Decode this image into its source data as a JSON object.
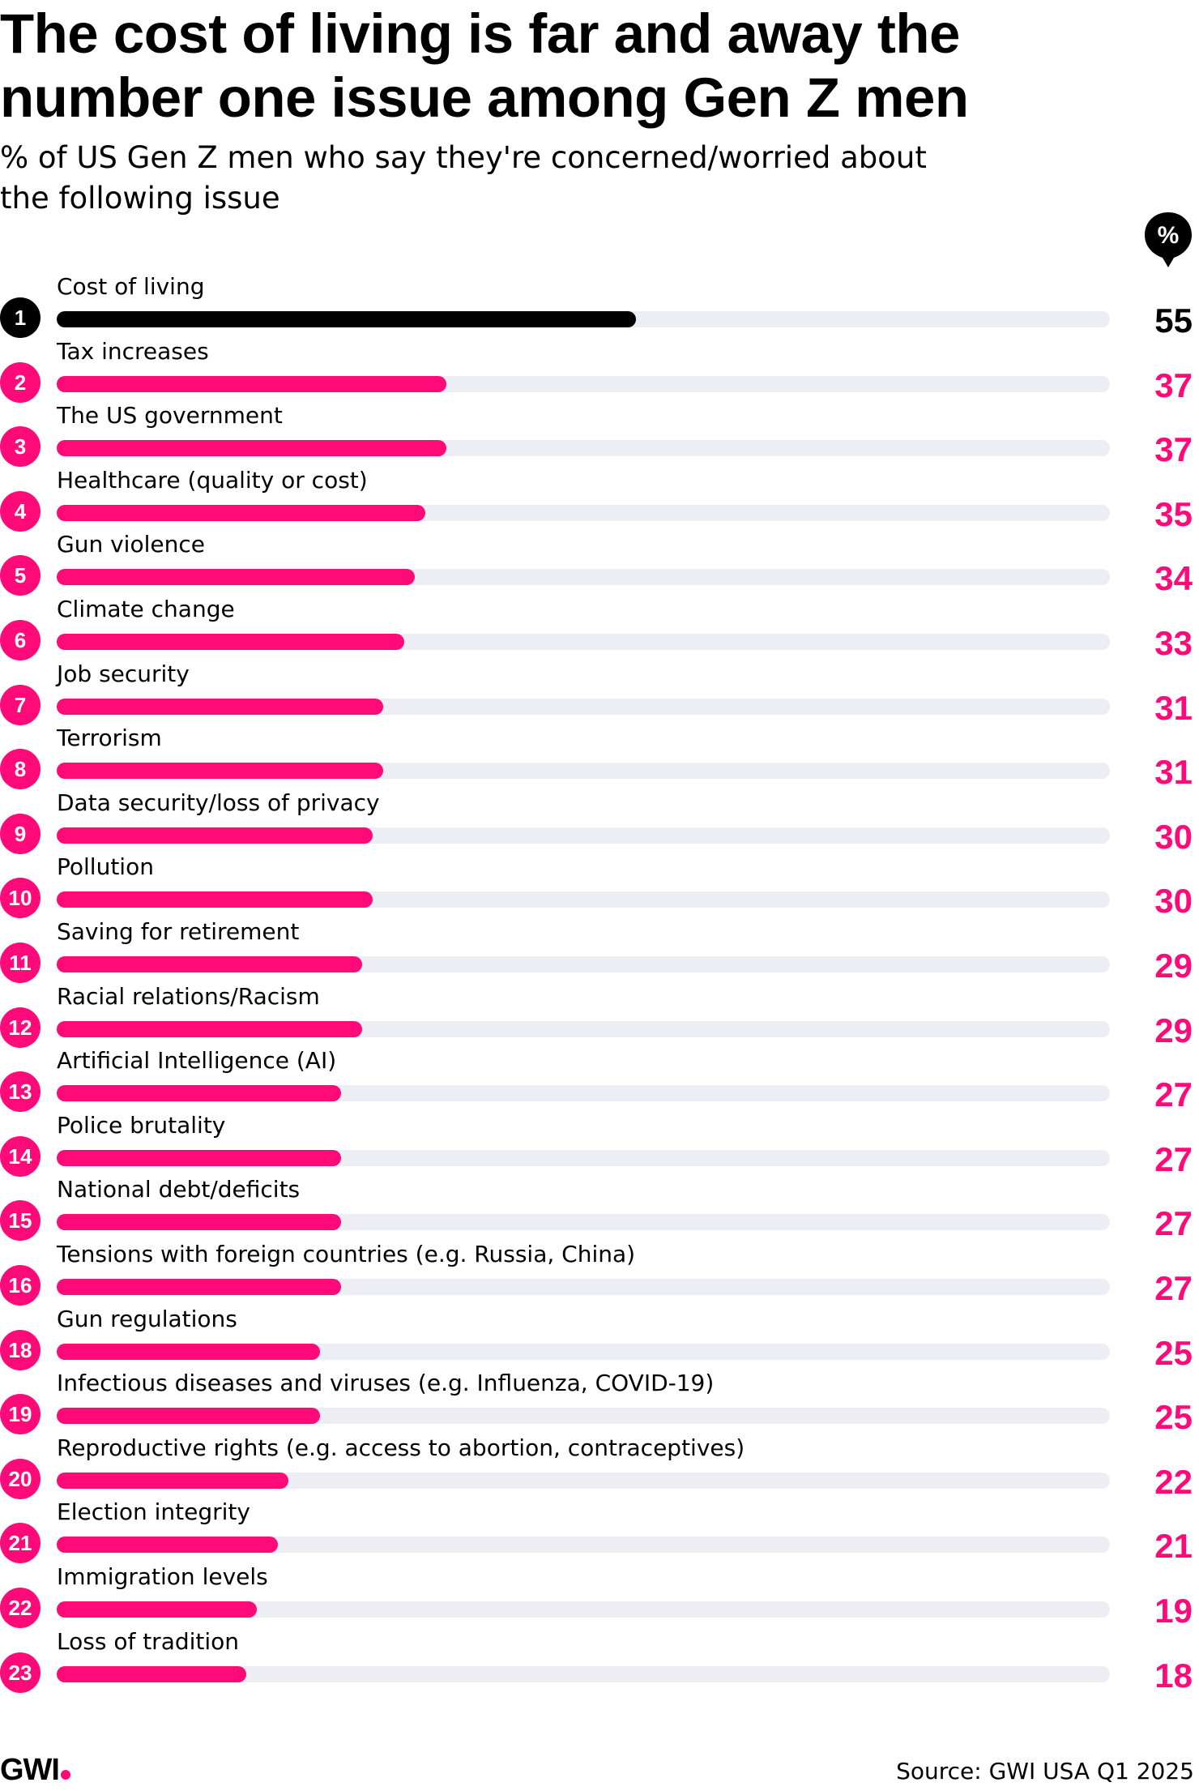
{
  "title": "The cost of living is far and away the number one issue among Gen Z men",
  "subtitle": "% of US Gen Z men who say they're concerned/worried about the following issue",
  "unit_marker": "%",
  "source": "Source: GWI USA Q1 2025",
  "brand": "GWI",
  "colors": {
    "highlight": "#000000",
    "accent": "#ff0a78",
    "track": "#eceef3"
  },
  "chart_data": {
    "type": "bar",
    "orientation": "horizontal",
    "title": "The cost of living is far and away the number one issue among Gen Z men",
    "subtitle": "% of US Gen Z men who say they're concerned/worried about the following issue",
    "xlim": [
      0,
      100
    ],
    "grid": false,
    "ranks": [
      "1",
      "2",
      "3",
      "4",
      "5",
      "6",
      "7",
      "8",
      "9",
      "10",
      "11",
      "12",
      "13",
      "14",
      "15",
      "16",
      "18",
      "19",
      "20",
      "21",
      "22",
      "23"
    ],
    "categories": [
      "Cost of living",
      "Tax increases",
      "The US government",
      "Healthcare (quality or cost)",
      "Gun violence",
      "Climate change",
      "Job security",
      "Terrorism",
      "Data security/loss of privacy",
      "Pollution",
      "Saving for retirement",
      "Racial relations/Racism",
      "Artificial Intelligence (AI)",
      "Police brutality",
      "National debt/deficits",
      "Tensions with foreign countries (e.g. Russia, China)",
      "Gun regulations",
      "Infectious diseases and viruses (e.g. Influenza, COVID-19)",
      "Reproductive rights (e.g. access to abortion, contraceptives)",
      "Election integrity",
      "Immigration levels",
      "Loss of tradition"
    ],
    "values": [
      55,
      37,
      37,
      35,
      34,
      33,
      31,
      31,
      30,
      30,
      29,
      29,
      27,
      27,
      27,
      27,
      25,
      25,
      22,
      21,
      19,
      18
    ]
  }
}
